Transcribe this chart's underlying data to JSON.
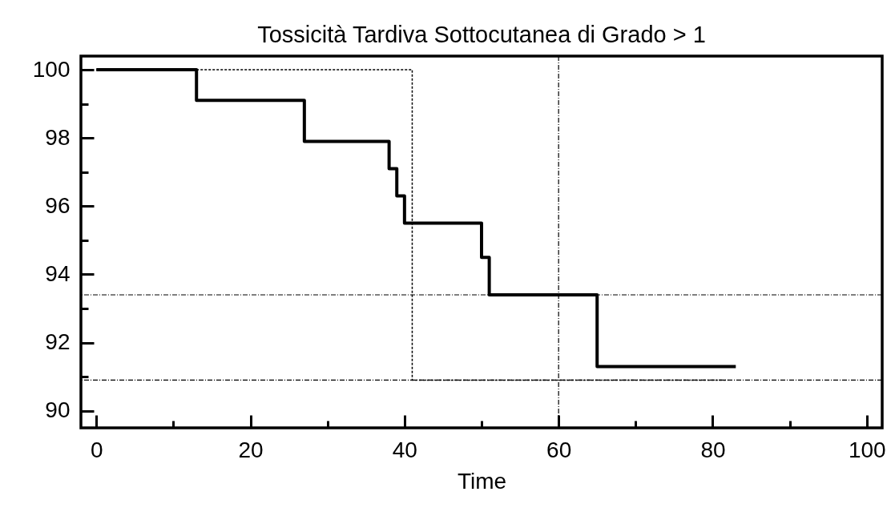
{
  "chart_data": {
    "type": "step",
    "title": "Tossicità Tardiva Sottocutanea di Grado > 1",
    "xlabel": "Time",
    "xlim": [
      -2,
      102
    ],
    "ylim": [
      89.5,
      100.4
    ],
    "xticks": [
      0,
      {
        "value": 10,
        "label": null
      },
      20,
      {
        "value": 30,
        "label": null
      },
      40,
      {
        "value": 50,
        "label": null
      },
      60,
      {
        "value": 70,
        "label": null
      },
      80,
      {
        "value": 90,
        "label": null
      },
      100
    ],
    "yticks": [
      90,
      {
        "value": 91,
        "label": null
      },
      92,
      {
        "value": 93,
        "label": null
      },
      94,
      {
        "value": 95,
        "label": null
      },
      96,
      {
        "value": 97,
        "label": null
      },
      98,
      {
        "value": 99,
        "label": null
      },
      100
    ],
    "marker": "none",
    "series": [
      {
        "color": "#000000",
        "line_style": "solid",
        "x": [
          0,
          13,
          27,
          38,
          39,
          40,
          50,
          51,
          65,
          83
        ],
        "values": [
          100,
          99.1,
          97.9,
          97.1,
          96.3,
          95.5,
          94.5,
          93.4,
          91.3,
          91.3
        ]
      },
      {
        "type": "line",
        "color": "#000000",
        "line_style": "dashed",
        "x": [
          0,
          41,
          41,
          82
        ],
        "values": [
          100,
          100,
          90.9,
          90.9
        ]
      }
    ],
    "ref_lines": [
      {
        "axis": "y",
        "value": 93.4,
        "color": "#000000",
        "line_style": "dotted"
      },
      {
        "axis": "y",
        "value": 90.9,
        "color": "#000000",
        "line_style": "dotted"
      },
      {
        "axis": "x",
        "value": 60,
        "color": "#000000",
        "line_style": "dotted"
      }
    ]
  }
}
